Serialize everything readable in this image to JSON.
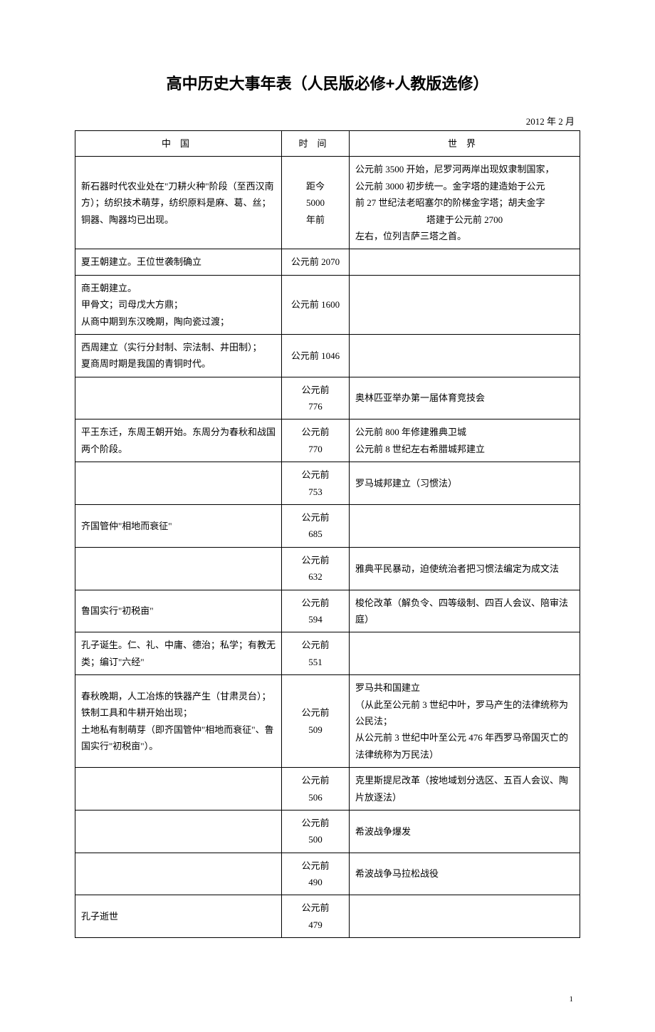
{
  "document": {
    "title": "高中历史大事年表（人民版必修+人教版选修）",
    "date": "2012 年 2 月",
    "page_number": "1",
    "headers": {
      "china": "中国",
      "time": "时间",
      "world": "世界"
    },
    "rows": [
      {
        "china": "新石器时代农业处在\"刀耕火种\"阶段（至西汉南方）；纺织技术萌芽，纺织原料是麻、葛、丝；铜器、陶器均已出现。",
        "time": "距今\n5000\n年前",
        "world_lines": [
          {
            "align": "left",
            "text": "公元前 3500 开始，尼罗河两岸出现奴隶制国家，"
          },
          {
            "align": "left",
            "text": "公元前 3000 初步统一。金字塔的建造始于公元"
          },
          {
            "align": "left",
            "text": "前 27 世纪法老昭塞尔的阶梯金字塔；胡夫金字"
          },
          {
            "align": "center",
            "text": "塔建于公元前 2700"
          },
          {
            "align": "left",
            "text": "左右，位列吉萨三塔之首。"
          }
        ]
      },
      {
        "china": "夏王朝建立。王位世袭制确立",
        "time": "公元前 2070",
        "world": ""
      },
      {
        "china": "商王朝建立。\n甲骨文；司母戊大方鼎；\n从商中期到东汉晚期，陶向瓷过渡；",
        "time": "公元前 1600",
        "world": ""
      },
      {
        "china": "西周建立（实行分封制、宗法制、井田制）；\n夏商周时期是我国的青铜时代。",
        "time": "公元前 1046",
        "world": ""
      },
      {
        "china": "",
        "time": "公元前\n776",
        "world": "奥林匹亚举办第一届体育竞技会"
      },
      {
        "china": "平王东迁，东周王朝开始。东周分为春秋和战国两个阶段。",
        "time": "公元前\n770",
        "world": "公元前 800 年修建雅典卫城\n公元前 8 世纪左右希腊城邦建立"
      },
      {
        "china": "",
        "time": "公元前\n753",
        "world": "罗马城邦建立（习惯法）"
      },
      {
        "china": "齐国管仲\"相地而衰征\"",
        "time": "公元前\n685",
        "world": ""
      },
      {
        "china": "",
        "time": "公元前\n632",
        "world": "雅典平民暴动，迫使统治者把习惯法编定为成文法"
      },
      {
        "china": "鲁国实行\"初税亩\"",
        "time": "公元前\n594",
        "world": "梭伦改革（解负令、四等级制、四百人会议、陪审法庭）"
      },
      {
        "china": "孔子诞生。仁、礼、中庸、德治；私学；有教无类；编订\"六经\"",
        "time": "公元前\n551",
        "world": ""
      },
      {
        "china": "春秋晚期，人工冶炼的铁器产生（甘肃灵台）；\n铁制工具和牛耕开始出现；\n土地私有制萌芽（即齐国管仲\"相地而衰征\"、鲁国实行\"初税亩\"）。",
        "time": "公元前\n509",
        "world": "罗马共和国建立\n（从此至公元前 3 世纪中叶，罗马产生的法律统称为公民法；\n从公元前 3 世纪中叶至公元 476 年西罗马帝国灭亡的法律统称为万民法）"
      },
      {
        "china": "",
        "time": "公元前\n506",
        "world": "克里斯提尼改革（按地域划分选区、五百人会议、陶片放逐法）"
      },
      {
        "china": "",
        "time": "公元前\n500",
        "world": "希波战争爆发"
      },
      {
        "china": "",
        "time": "公元前\n490",
        "world": "希波战争马拉松战役"
      },
      {
        "china": "孔子逝世",
        "time": "公元前\n479",
        "world": ""
      }
    ]
  }
}
